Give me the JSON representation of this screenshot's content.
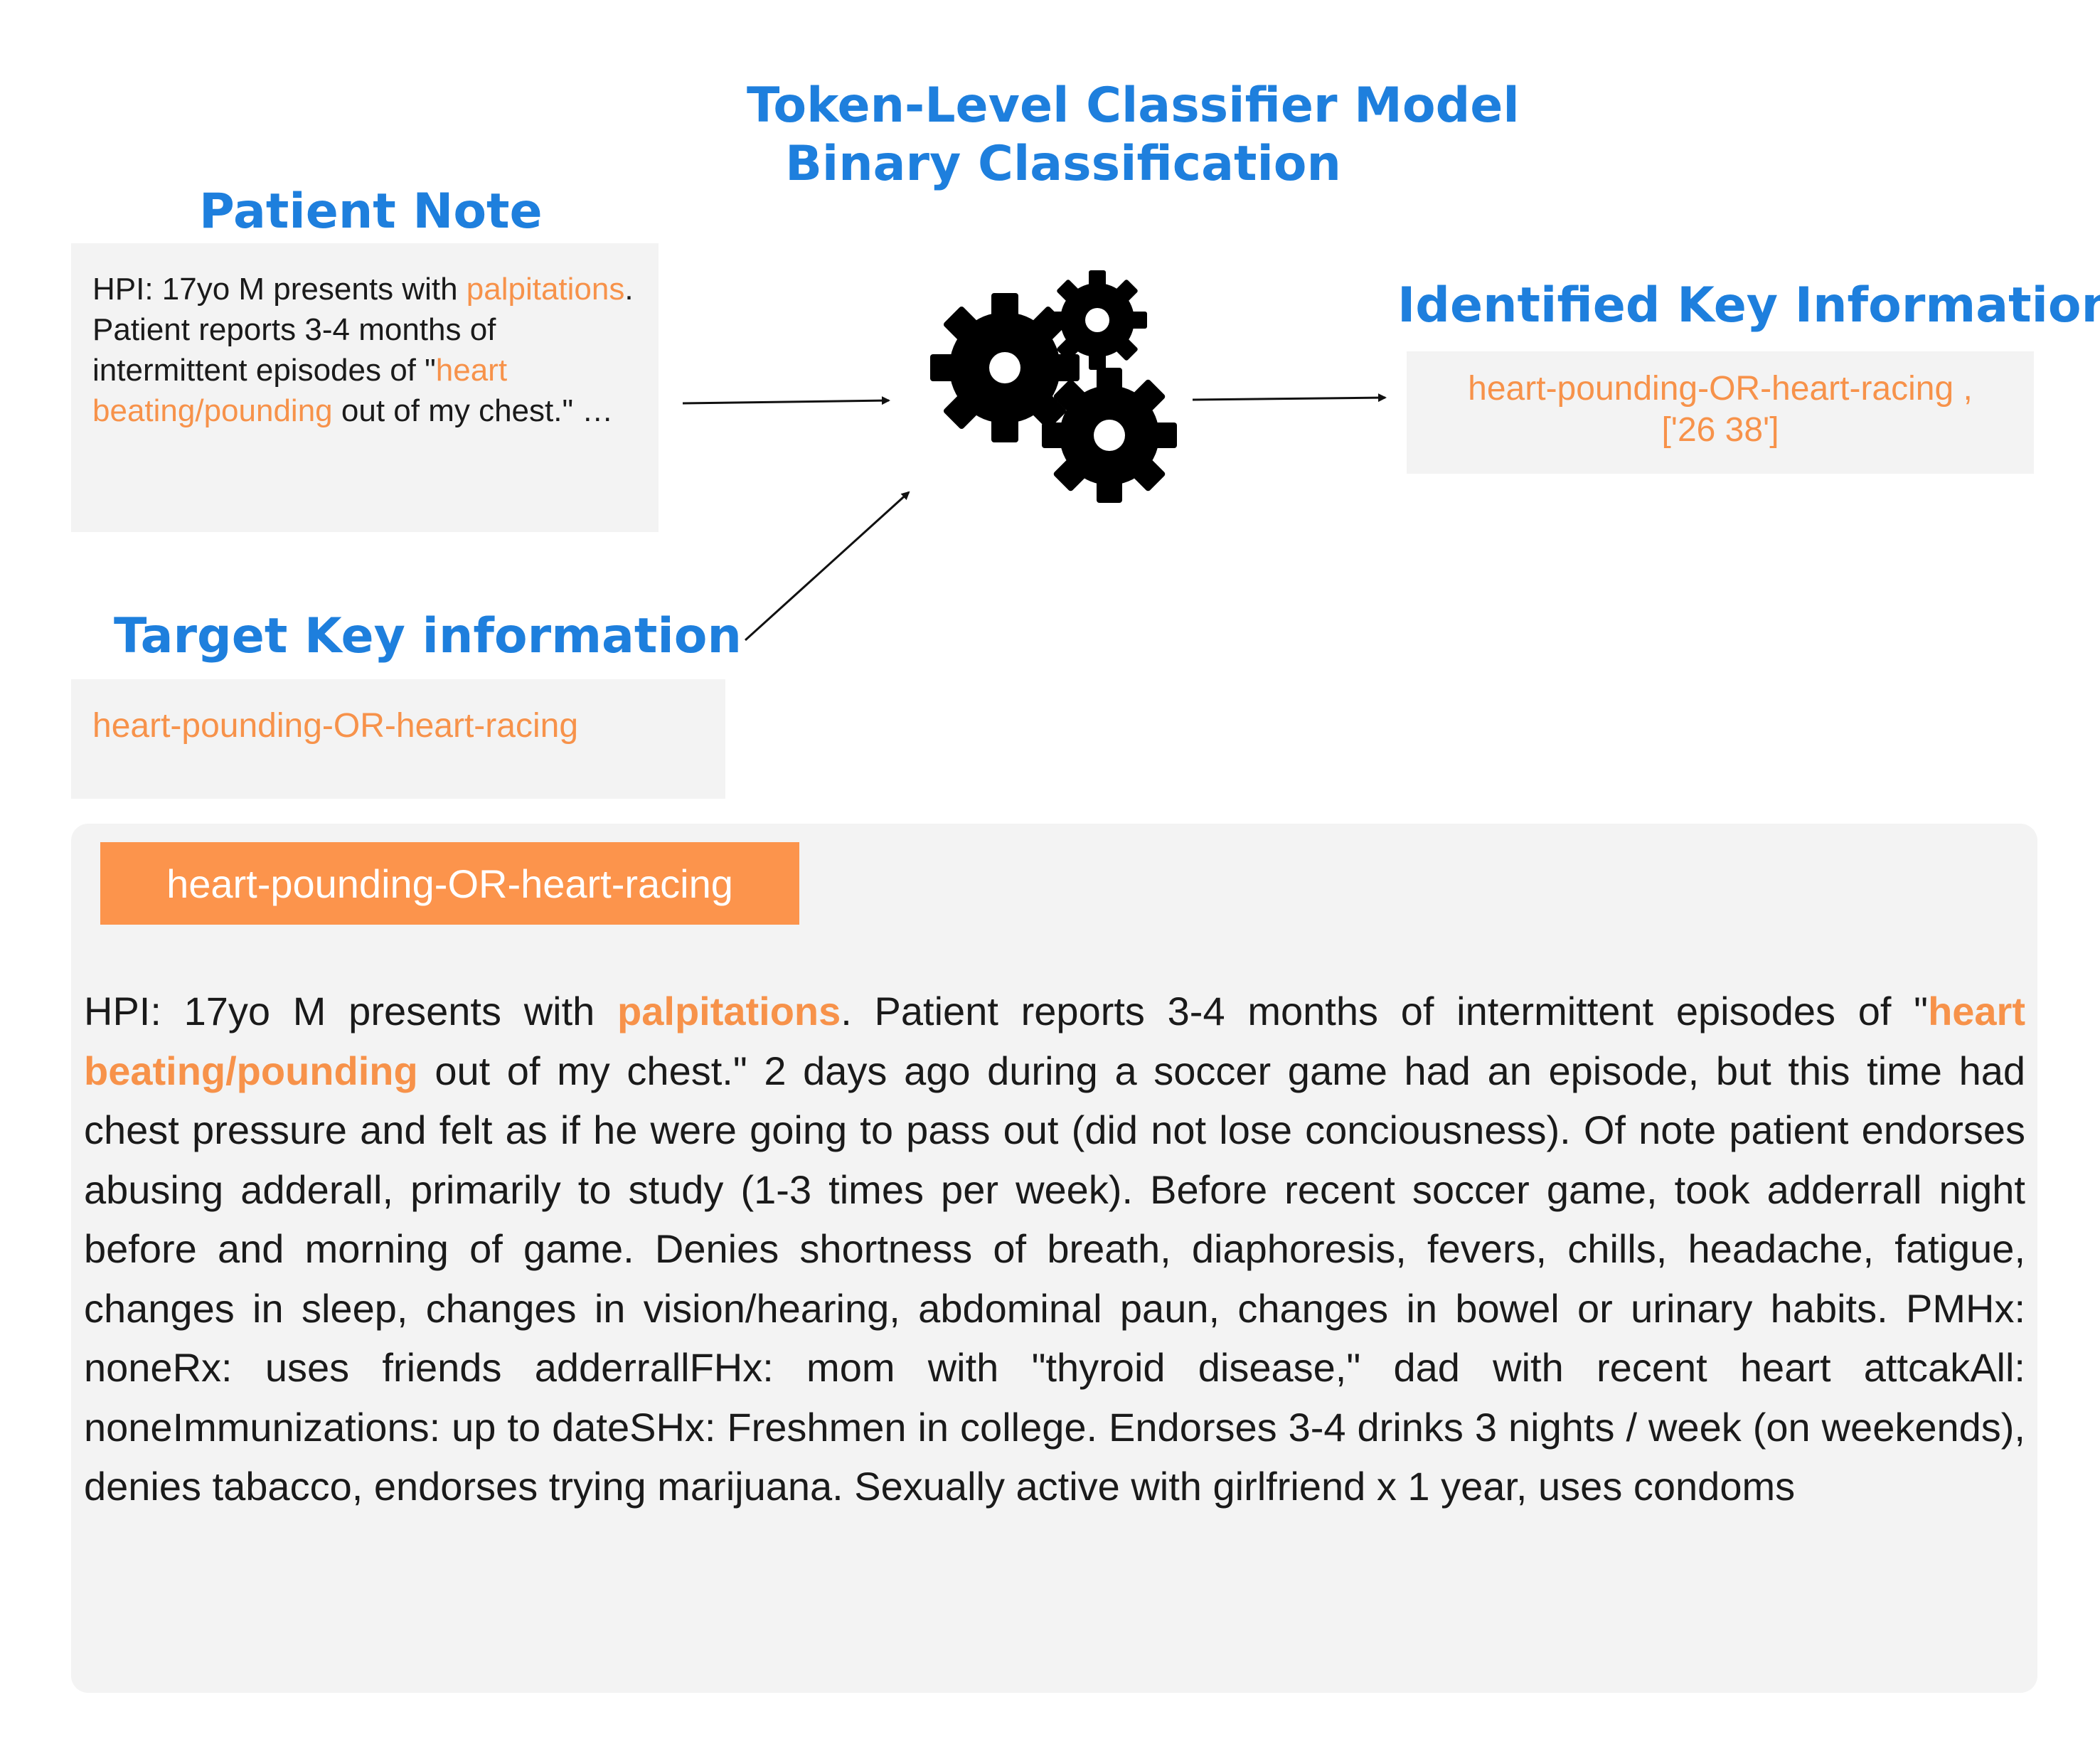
{
  "model": {
    "title_line1": "Token-Level Classifier Model",
    "title_line2": "Binary Classification",
    "icon": "gears-icon"
  },
  "patient_note": {
    "heading": "Patient Note",
    "segments": [
      {
        "text": "HPI: 17yo M presents with ",
        "highlight": false
      },
      {
        "text": "palpitations",
        "highlight": true
      },
      {
        "text": ". Patient reports 3-4 months of intermittent episodes of \"",
        "highlight": false
      },
      {
        "text": "heart beating/pounding",
        "highlight": true
      },
      {
        "text": " out of my chest.\" …",
        "highlight": false
      }
    ]
  },
  "target": {
    "heading": "Target Key information",
    "value": "heart-pounding-OR-heart-racing"
  },
  "identified": {
    "heading": "Identified Key Information",
    "line1": "heart-pounding-OR-heart-racing ,",
    "line2": "['26 38']"
  },
  "example": {
    "label": "heart-pounding-OR-heart-racing",
    "segments": [
      {
        "text": "HPI: 17yo M presents with ",
        "highlight": false
      },
      {
        "text": "palpitations",
        "highlight": true
      },
      {
        "text": ". Patient reports 3-4 months of intermittent episodes of \"",
        "highlight": false
      },
      {
        "text": "heart beating/pounding",
        "highlight": true
      },
      {
        "text": " out of my chest.\" 2 days ago during a soccer game had an episode, but this time had chest pressure and felt as if he were going to pass out (did not lose conciousness). Of note patient endorses abusing adderall, primarily to study (1-3 times per week). Before recent soccer game, took adderrall night before and morning of game. Denies shortness of breath, diaphoresis, fevers, chills, headache, fatigue, changes in sleep, changes in vision/hearing, abdominal paun, changes in bowel or urinary habits. PMHx: noneRx: uses friends adderrallFHx: mom with \"thyroid disease,\" dad with recent heart attcakAll: noneImmunizations: up to dateSHx: Freshmen in college. Endorses 3-4 drinks 3 nights / week (on weekends), denies tabacco, endorses trying marijuana. Sexually active with girlfriend x 1 year, uses condoms",
        "highlight": false
      }
    ]
  }
}
